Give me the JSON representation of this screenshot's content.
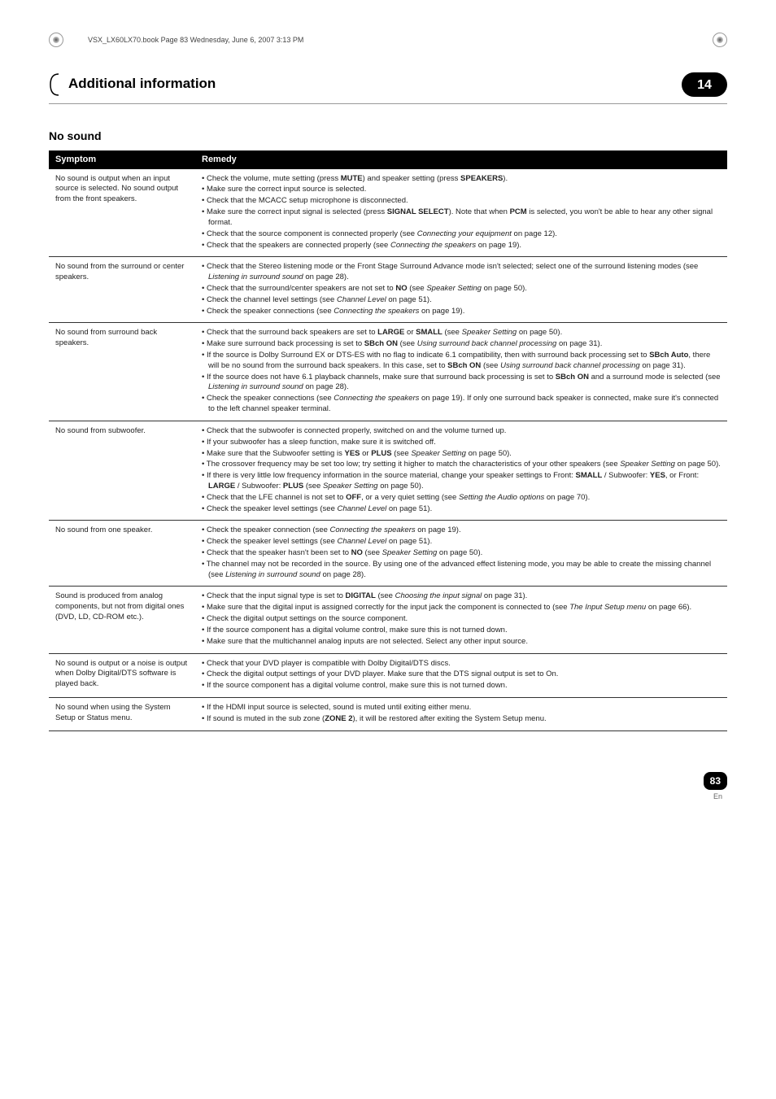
{
  "meta": {
    "bookline": "VSX_LX60LX70.book  Page 83  Wednesday, June 6, 2007  3:13 PM"
  },
  "header": {
    "title": "Additional information",
    "chapter": "14"
  },
  "section": {
    "heading": "No sound"
  },
  "table": {
    "head": {
      "symptom": "Symptom",
      "remedy": "Remedy"
    },
    "rows": [
      {
        "symptom": "No sound is output when an input source is selected.\nNo sound output from the front speakers.",
        "remedies": [
          "• Check the volume, mute setting (press <b>MUTE</b>) and speaker setting (press <b>SPEAKERS</b>).",
          "• Make sure the correct input source is selected.",
          "• Check that the MCACC setup microphone is disconnected.",
          "• Make sure the correct input signal is selected (press <b>SIGNAL SELECT</b>). Note that when <b>PCM</b> is selected, you won't be able to hear any other signal format.",
          "• Check that the source component is connected properly (see <i>Connecting your equipment</i> on page 12).",
          "• Check that the speakers are connected properly (see <i>Connecting the speakers</i> on page 19)."
        ]
      },
      {
        "symptom": "No sound from the surround or center speakers.",
        "remedies": [
          "• Check that the Stereo listening mode or the Front Stage Surround Advance mode isn't selected; select one of the surround listening modes (see <i>Listening in surround sound</i> on page 28).",
          "• Check that the surround/center speakers are not set to <b>NO</b> (see <i>Speaker Setting</i> on page 50).",
          "• Check the channel level settings (see <i>Channel Level</i> on page 51).",
          "• Check the speaker connections (see <i>Connecting the speakers</i> on page 19)."
        ]
      },
      {
        "symptom": "No sound from surround back speakers.",
        "remedies": [
          "• Check that the surround back speakers are set to <b>LARGE</b> or <b>SMALL</b> (see <i>Speaker Setting</i> on page 50).",
          "• Make sure surround back processing is set to <b>SBch ON</b> (see <i>Using surround back channel processing</i> on page 31).",
          "• If the source is Dolby Surround EX or DTS-ES with no flag to indicate 6.1 compatibility, then with surround back processing set to <b>SBch Auto</b>, there will be no sound from the surround back speakers. In this case, set to <b>SBch ON</b> (see <i>Using surround back channel processing</i> on page 31).",
          "• If the source does not have 6.1 playback channels, make sure that surround back processing is set to <b>SBch ON</b> and a surround mode is selected (see <i>Listening in surround sound</i> on page 28).",
          "• Check the speaker connections (see <i>Connecting the speakers</i> on page 19). If only one surround back speaker is connected, make sure it's connected to the left channel speaker terminal."
        ]
      },
      {
        "symptom": "No sound from subwoofer.",
        "remedies": [
          "• Check that the subwoofer is connected properly, switched on and the volume turned up.",
          "• If your subwoofer has a sleep function, make sure it is switched off.",
          "• Make sure that the Subwoofer setting is <b>YES</b> or <b>PLUS</b> (see <i>Speaker Setting</i> on page 50).",
          "• The crossover frequency may be set too low; try setting it higher to match the characteristics of your other speakers (see <i>Speaker Setting</i> on page 50).",
          "• If there is very little low frequency information in the source material, change your speaker settings to Front: <b>SMALL</b> / Subwoofer: <b>YES</b>, or Front: <b>LARGE</b> / Subwoofer: <b>PLUS</b> (see <i>Speaker Setting</i> on page 50).",
          "• Check that the LFE channel is not set to <b>OFF</b>, or a very quiet setting (see <i>Setting the Audio options</i> on page 70).",
          "• Check the speaker level settings (see <i>Channel Level</i> on page 51)."
        ]
      },
      {
        "symptom": "No sound from one speaker.",
        "remedies": [
          "• Check the speaker connection (see <i>Connecting the speakers</i> on page 19).",
          "• Check the speaker level settings (see <i>Channel Level</i> on page 51).",
          "• Check that the speaker hasn't been set to <b>NO</b> (see <i>Speaker Setting</i> on page 50).",
          "• The channel may not be recorded in the source. By using one of the advanced effect listening mode, you may be able to create the missing channel (see <i>Listening in surround sound</i> on page 28)."
        ]
      },
      {
        "symptom": "Sound is produced from analog components, but not from digital ones (DVD, LD, CD-ROM etc.).",
        "remedies": [
          "• Check that the input signal type is set to <b>DIGITAL</b> (see <i>Choosing the input signal</i> on page 31).",
          "• Make sure that the digital input is assigned correctly for the input jack the component is connected to (see <i>The Input Setup menu</i> on page 66).",
          "• Check the digital output settings on the source component.",
          "• If the source component has a digital volume control, make sure this is not turned down.",
          "• Make sure that the multichannel analog inputs are not selected. Select any other input source."
        ]
      },
      {
        "symptom": "No sound is output or a noise is output when Dolby Digital/DTS software is played back.",
        "remedies": [
          "• Check that your DVD player is compatible with Dolby Digital/DTS discs.",
          "• Check the digital output settings of your DVD player. Make sure that the DTS signal output is set to On.",
          "• If the source component has a digital volume control, make sure this is not turned down."
        ]
      },
      {
        "symptom": "No sound when using the System Setup or Status menu.",
        "remedies": [
          "• If the HDMI input source is selected, sound is muted until exiting either menu.",
          "• If sound is muted in the sub zone (<b>ZONE 2</b>), it will be restored after exiting the System Setup menu."
        ]
      }
    ]
  },
  "footer": {
    "page": "83",
    "lang": "En"
  }
}
